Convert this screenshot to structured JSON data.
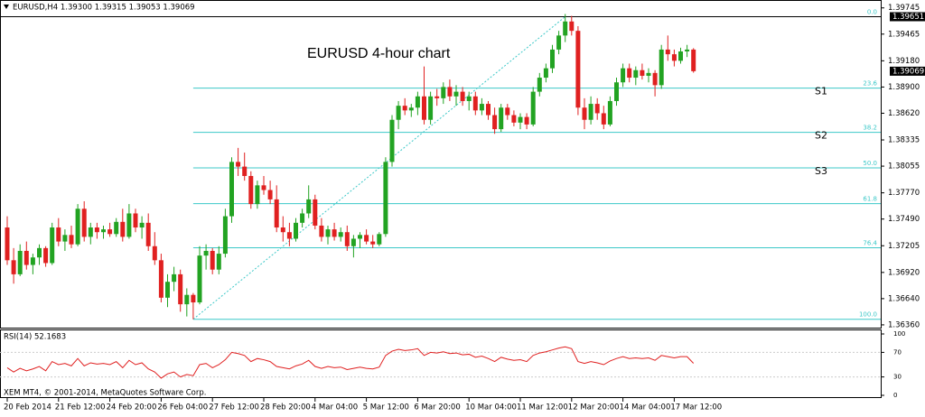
{
  "chart_data": {
    "type": "candlestick",
    "title": "EURUSD,H4  1.39300 1.39315 1.39053 1.39069",
    "annotation": "EURUSD 4-hour chart",
    "footer": "XEM MT4, © 2001-2014, MetaQuotes Software Corp.",
    "up_color": "#22a322",
    "down_color": "#e02020",
    "ylim": [
      1.3634,
      1.3981
    ],
    "yticks": [
      {
        "value": 1.39745,
        "label": "1.39745"
      },
      {
        "value": 1.39465,
        "label": "1.39465"
      },
      {
        "value": 1.3918,
        "label": "1.39180"
      },
      {
        "value": 1.389,
        "label": "1.38900"
      },
      {
        "value": 1.3862,
        "label": "1.38620"
      },
      {
        "value": 1.38335,
        "label": "1.38335"
      },
      {
        "value": 1.38055,
        "label": "1.38055"
      },
      {
        "value": 1.3777,
        "label": "1.37770"
      },
      {
        "value": 1.3749,
        "label": "1.37490"
      },
      {
        "value": 1.37205,
        "label": "1.37205"
      },
      {
        "value": 1.3692,
        "label": "1.36920"
      },
      {
        "value": 1.3664,
        "label": "1.36640"
      },
      {
        "value": 1.3636,
        "label": "1.36360"
      }
    ],
    "price_tags": [
      1.39651,
      1.39069
    ],
    "fib": [
      {
        "value": 1.39651,
        "label": "0.0"
      },
      {
        "value": 1.38888,
        "label": "23.6"
      },
      {
        "value": 1.38416,
        "label": "38.2"
      },
      {
        "value": 1.38036,
        "label": "50.0"
      },
      {
        "value": 1.37655,
        "label": "61.8"
      },
      {
        "value": 1.37183,
        "label": "76.4"
      },
      {
        "value": 1.3642,
        "label": "100.0"
      }
    ],
    "fib_color": "#3cc8c8",
    "supports": [
      "S1",
      "S2",
      "S3"
    ],
    "categories": [
      "20 Feb 2014",
      null,
      null,
      null,
      null,
      null,
      null,
      null,
      "21 Feb 12:00",
      null,
      null,
      null,
      null,
      null,
      null,
      null,
      "24 Feb 20:00",
      null,
      null,
      null,
      null,
      null,
      null,
      null,
      "26 Feb 04:00",
      null,
      null,
      null,
      null,
      null,
      null,
      null,
      "27 Feb 12:00",
      null,
      null,
      null,
      null,
      null,
      null,
      null,
      "28 Feb 20:00",
      null,
      null,
      null,
      null,
      null,
      null,
      null,
      "4 Mar 04:00",
      null,
      null,
      null,
      null,
      null,
      null,
      null,
      "5 Mar 12:00",
      null,
      null,
      null,
      null,
      null,
      null,
      null,
      "6 Mar 20:00",
      null,
      null,
      null,
      null,
      null,
      null,
      null,
      "10 Mar 04:00",
      null,
      null,
      null,
      null,
      null,
      null,
      null,
      "11 Mar 12:00",
      null,
      null,
      null,
      null,
      null,
      null,
      null,
      "12 Mar 20:00",
      null,
      null,
      null,
      null,
      null,
      null,
      null,
      "14 Mar 04:00",
      null,
      null,
      null,
      null,
      null,
      null,
      null,
      "17 Mar 12:00",
      null,
      null,
      null
    ],
    "candles": [
      [
        1.374,
        1.3752,
        1.37,
        1.3705
      ],
      [
        1.3705,
        1.3718,
        1.368,
        1.369
      ],
      [
        1.369,
        1.3722,
        1.3688,
        1.3715
      ],
      [
        1.3715,
        1.3725,
        1.3695,
        1.37
      ],
      [
        1.37,
        1.3712,
        1.369,
        1.3708
      ],
      [
        1.3708,
        1.3722,
        1.37,
        1.3718
      ],
      [
        1.3718,
        1.372,
        1.3698,
        1.3702
      ],
      [
        1.3702,
        1.3745,
        1.37,
        1.374
      ],
      [
        1.374,
        1.375,
        1.372,
        1.3725
      ],
      [
        1.3725,
        1.3738,
        1.3715,
        1.3732
      ],
      [
        1.3732,
        1.3742,
        1.3718,
        1.3722
      ],
      [
        1.3722,
        1.3765,
        1.372,
        1.376
      ],
      [
        1.376,
        1.3768,
        1.3725,
        1.373
      ],
      [
        1.373,
        1.3745,
        1.3722,
        1.374
      ],
      [
        1.374,
        1.3745,
        1.3728,
        1.3735
      ],
      [
        1.3735,
        1.3742,
        1.3728,
        1.3738
      ],
      [
        1.3738,
        1.3745,
        1.373,
        1.3733
      ],
      [
        1.3733,
        1.375,
        1.373,
        1.3746
      ],
      [
        1.3746,
        1.376,
        1.3725,
        1.373
      ],
      [
        1.373,
        1.3765,
        1.3728,
        1.3755
      ],
      [
        1.3755,
        1.376,
        1.3735,
        1.374
      ],
      [
        1.374,
        1.3752,
        1.3728,
        1.3745
      ],
      [
        1.3745,
        1.3755,
        1.3715,
        1.372
      ],
      [
        1.372,
        1.3735,
        1.37,
        1.3705
      ],
      [
        1.3705,
        1.3712,
        1.366,
        1.3665
      ],
      [
        1.3665,
        1.369,
        1.3655,
        1.3682
      ],
      [
        1.3682,
        1.3698,
        1.3672,
        1.369
      ],
      [
        1.369,
        1.3695,
        1.365,
        1.3658
      ],
      [
        1.3658,
        1.3675,
        1.3645,
        1.3668
      ],
      [
        1.3668,
        1.367,
        1.3642,
        1.366
      ],
      [
        1.366,
        1.372,
        1.3658,
        1.371
      ],
      [
        1.371,
        1.3722,
        1.3695,
        1.3715
      ],
      [
        1.3715,
        1.3718,
        1.369,
        1.3695
      ],
      [
        1.3695,
        1.372,
        1.369,
        1.3712
      ],
      [
        1.3712,
        1.376,
        1.3708,
        1.3752
      ],
      [
        1.3752,
        1.3815,
        1.3745,
        1.381
      ],
      [
        1.381,
        1.3825,
        1.3795,
        1.3805
      ],
      [
        1.3805,
        1.382,
        1.379,
        1.3795
      ],
      [
        1.3795,
        1.38,
        1.376,
        1.3765
      ],
      [
        1.3765,
        1.379,
        1.376,
        1.3785
      ],
      [
        1.3785,
        1.3795,
        1.3775,
        1.378
      ],
      [
        1.378,
        1.379,
        1.3765,
        1.377
      ],
      [
        1.377,
        1.3785,
        1.3735,
        1.374
      ],
      [
        1.374,
        1.3752,
        1.3725,
        1.3735
      ],
      [
        1.3735,
        1.3745,
        1.372,
        1.3728
      ],
      [
        1.3728,
        1.375,
        1.3725,
        1.3745
      ],
      [
        1.3745,
        1.376,
        1.374,
        1.3755
      ],
      [
        1.3755,
        1.3785,
        1.375,
        1.377
      ],
      [
        1.377,
        1.3775,
        1.3738,
        1.3742
      ],
      [
        1.3742,
        1.375,
        1.3725,
        1.373
      ],
      [
        1.373,
        1.3742,
        1.3722,
        1.3738
      ],
      [
        1.3738,
        1.3745,
        1.3726,
        1.373
      ],
      [
        1.373,
        1.374,
        1.3725,
        1.3735
      ],
      [
        1.3735,
        1.3742,
        1.3715,
        1.372
      ],
      [
        1.372,
        1.3732,
        1.3708,
        1.3728
      ],
      [
        1.3728,
        1.3735,
        1.3718,
        1.3732
      ],
      [
        1.3732,
        1.3738,
        1.3722,
        1.3725
      ],
      [
        1.3725,
        1.3732,
        1.3718,
        1.3722
      ],
      [
        1.3722,
        1.3735,
        1.372,
        1.3733
      ],
      [
        1.3733,
        1.3815,
        1.373,
        1.381
      ],
      [
        1.381,
        1.386,
        1.3805,
        1.3855
      ],
      [
        1.3855,
        1.3875,
        1.3845,
        1.387
      ],
      [
        1.387,
        1.3878,
        1.386,
        1.3865
      ],
      [
        1.3865,
        1.3872,
        1.3858,
        1.3868
      ],
      [
        1.3868,
        1.3885,
        1.386,
        1.388
      ],
      [
        1.388,
        1.3912,
        1.385,
        1.3855
      ],
      [
        1.3855,
        1.3885,
        1.385,
        1.388
      ],
      [
        1.388,
        1.3888,
        1.387,
        1.3878
      ],
      [
        1.3878,
        1.3895,
        1.3872,
        1.389
      ],
      [
        1.389,
        1.3898,
        1.3875,
        1.388
      ],
      [
        1.388,
        1.3892,
        1.387,
        1.3885
      ],
      [
        1.3885,
        1.389,
        1.387,
        1.3875
      ],
      [
        1.3875,
        1.3885,
        1.3865,
        1.388
      ],
      [
        1.388,
        1.3885,
        1.386,
        1.3865
      ],
      [
        1.3865,
        1.3878,
        1.386,
        1.3872
      ],
      [
        1.3872,
        1.3875,
        1.3855,
        1.386
      ],
      [
        1.386,
        1.3868,
        1.384,
        1.3845
      ],
      [
        1.3845,
        1.3872,
        1.3842,
        1.3868
      ],
      [
        1.3868,
        1.3872,
        1.3855,
        1.386
      ],
      [
        1.386,
        1.3865,
        1.3848,
        1.3852
      ],
      [
        1.3852,
        1.3862,
        1.3845,
        1.3858
      ],
      [
        1.3858,
        1.3862,
        1.3845,
        1.385
      ],
      [
        1.385,
        1.389,
        1.3848,
        1.3885
      ],
      [
        1.3885,
        1.3905,
        1.388,
        1.39
      ],
      [
        1.39,
        1.3915,
        1.3895,
        1.391
      ],
      [
        1.391,
        1.3935,
        1.3905,
        1.393
      ],
      [
        1.393,
        1.395,
        1.3925,
        1.3945
      ],
      [
        1.3945,
        1.3968,
        1.3938,
        1.396
      ],
      [
        1.396,
        1.3966,
        1.3945,
        1.395
      ],
      [
        1.395,
        1.3955,
        1.386,
        1.3868
      ],
      [
        1.3868,
        1.3878,
        1.3845,
        1.3855
      ],
      [
        1.3855,
        1.388,
        1.385,
        1.3872
      ],
      [
        1.3872,
        1.3878,
        1.3855,
        1.3862
      ],
      [
        1.3862,
        1.387,
        1.3845,
        1.385
      ],
      [
        1.385,
        1.388,
        1.3848,
        1.3875
      ],
      [
        1.3875,
        1.39,
        1.387,
        1.3895
      ],
      [
        1.3895,
        1.3915,
        1.389,
        1.391
      ],
      [
        1.391,
        1.3915,
        1.3895,
        1.39
      ],
      [
        1.39,
        1.3912,
        1.3892,
        1.3908
      ],
      [
        1.3908,
        1.3915,
        1.3898,
        1.3902
      ],
      [
        1.3902,
        1.391,
        1.3895,
        1.3905
      ],
      [
        1.3905,
        1.3908,
        1.388,
        1.3892
      ],
      [
        1.3892,
        1.3935,
        1.3888,
        1.393
      ],
      [
        1.393,
        1.3945,
        1.3918,
        1.3925
      ],
      [
        1.3925,
        1.393,
        1.3912,
        1.3918
      ],
      [
        1.3918,
        1.3932,
        1.3915,
        1.3928
      ],
      [
        1.3928,
        1.3935,
        1.3922,
        1.393
      ],
      [
        1.393,
        1.39315,
        1.39053,
        1.39069
      ]
    ],
    "rsi": {
      "label": "RSI(14) 52.1683",
      "color": "#e02020",
      "ylim": [
        0,
        100
      ],
      "yticks": [
        100,
        70,
        30,
        0
      ],
      "values": [
        45,
        38,
        44,
        40,
        43,
        47,
        40,
        55,
        50,
        52,
        48,
        60,
        48,
        53,
        51,
        52,
        50,
        55,
        45,
        57,
        50,
        53,
        43,
        38,
        28,
        35,
        38,
        30,
        34,
        32,
        50,
        52,
        45,
        50,
        58,
        70,
        68,
        65,
        55,
        60,
        58,
        55,
        47,
        45,
        43,
        48,
        51,
        57,
        47,
        44,
        47,
        45,
        46,
        42,
        44,
        46,
        44,
        43,
        46,
        65,
        72,
        75,
        73,
        74,
        76,
        65,
        70,
        69,
        71,
        68,
        69,
        66,
        67,
        62,
        64,
        60,
        55,
        62,
        59,
        57,
        58,
        55,
        65,
        69,
        71,
        74,
        77,
        79,
        76,
        55,
        52,
        55,
        53,
        50,
        56,
        60,
        63,
        60,
        61,
        60,
        61,
        57,
        65,
        63,
        61,
        63,
        63,
        52.1683
      ]
    }
  }
}
